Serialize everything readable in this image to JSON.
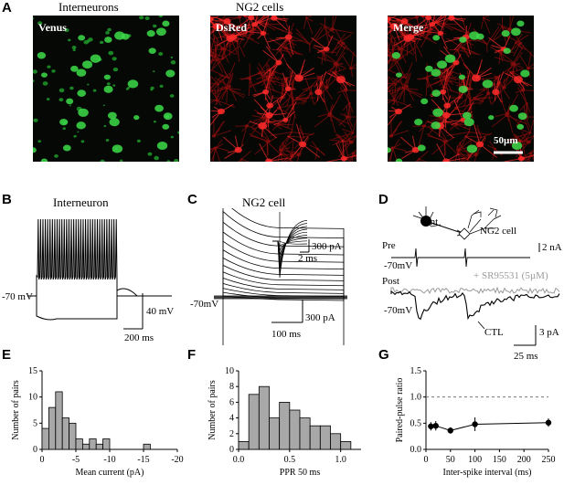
{
  "panels": {
    "A": {
      "letter": "A",
      "titles": [
        "Interneurons",
        "NG2 cells",
        ""
      ],
      "labels": [
        "Venus",
        "DsRed",
        "Merge"
      ],
      "scalebar": "50µm"
    },
    "B": {
      "letter": "B",
      "title": "Interneuron",
      "rmp": "-70 mV",
      "scale_v": "40 mV",
      "scale_t": "200 ms"
    },
    "C": {
      "letter": "C",
      "title": "NG2 cell",
      "hold": "-70mV",
      "inset_i": "300 pA",
      "inset_t": "2 ms",
      "scale_i": "300 pA",
      "scale_t": "100 ms"
    },
    "D": {
      "letter": "D",
      "int": "Int",
      "ng2": "NG2 cell",
      "pre": "Pre",
      "post": "Post",
      "hold_pre": "-70mV",
      "hold_post": "-70mV",
      "drug": "+ SR95531 (5µM)",
      "ctl": "CTL",
      "scale_pre": "2 nA",
      "scale_post": "3 pA",
      "scale_t": "25 ms"
    },
    "E": {
      "letter": "E"
    },
    "F": {
      "letter": "F"
    },
    "G": {
      "letter": "G"
    }
  },
  "chart_data": [
    {
      "panel": "E",
      "type": "bar",
      "xlabel": "Mean current (pA)",
      "ylabel": "Number of pairs",
      "xlim": [
        0,
        -20
      ],
      "ylim": [
        0,
        15
      ],
      "xticks": [
        0,
        -5,
        -10,
        -15,
        -20
      ],
      "yticks": [
        0,
        5,
        10,
        15
      ],
      "bin_width": -1,
      "bin_starts": [
        0,
        -1,
        -2,
        -3,
        -4,
        -5,
        -6,
        -7,
        -8,
        -9,
        -10,
        -11,
        -12,
        -13,
        -14,
        -15,
        -16,
        -17,
        -18,
        -19
      ],
      "values": [
        4,
        8,
        11,
        6,
        5,
        2,
        1,
        2,
        1,
        2,
        0,
        0,
        0,
        0,
        0,
        1,
        0,
        0,
        0,
        0
      ]
    },
    {
      "panel": "F",
      "type": "bar",
      "xlabel": "PPR 50 ms",
      "ylabel": "Number of pairs",
      "xlim": [
        0,
        1.2
      ],
      "ylim": [
        0,
        10
      ],
      "xticks": [
        "0.0",
        "0.5",
        "1.0"
      ],
      "yticks": [
        0,
        2,
        4,
        6,
        8,
        10
      ],
      "bin_width": 0.1,
      "bin_starts": [
        0.0,
        0.1,
        0.2,
        0.3,
        0.4,
        0.5,
        0.6,
        0.7,
        0.8,
        0.9,
        1.0,
        1.1
      ],
      "values": [
        1,
        7,
        8,
        4,
        6,
        5,
        4,
        3,
        3,
        2,
        1,
        0
      ]
    },
    {
      "panel": "G",
      "type": "scatter",
      "xlabel": "Inter-spike interval (ms)",
      "ylabel": "Paired-pulse ratio",
      "xlim": [
        0,
        250
      ],
      "ylim": [
        0,
        1.5
      ],
      "xticks": [
        0,
        50,
        100,
        150,
        200,
        250
      ],
      "yticks": [
        "0.0",
        "0.5",
        "1.0",
        "1.5"
      ],
      "reference_line": 1.0,
      "x": [
        10,
        20,
        50,
        100,
        250
      ],
      "y": [
        0.44,
        0.45,
        0.36,
        0.48,
        0.51
      ],
      "err": [
        0.08,
        0.09,
        0.06,
        0.13,
        0.08
      ]
    }
  ]
}
